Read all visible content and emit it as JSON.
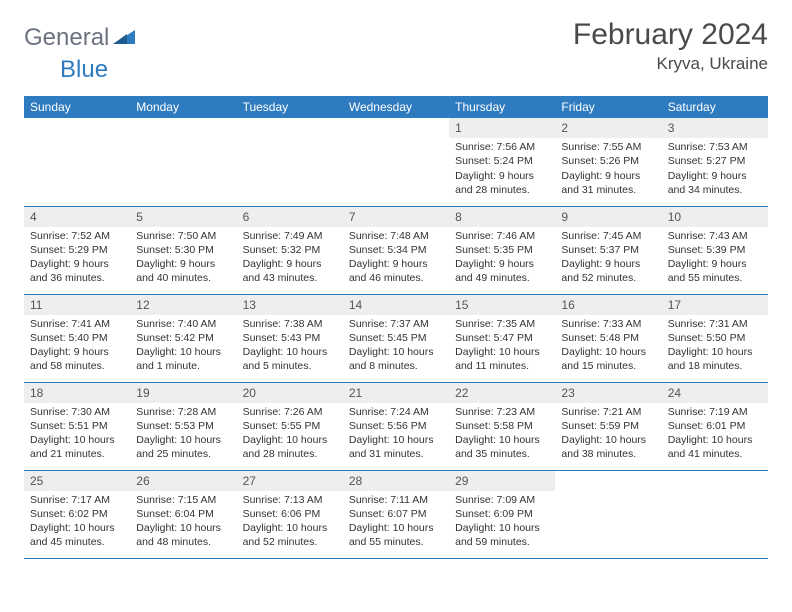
{
  "brand": {
    "name_a": "General",
    "name_b": "Blue"
  },
  "title": "February 2024",
  "location": "Kryva, Ukraine",
  "colors": {
    "header_bg": "#2f7bbf",
    "header_text": "#ffffff",
    "daynum_bg": "#eeeeee",
    "row_border": "#2f7bbf",
    "body_text": "#333333",
    "logo_gray": "#6b7280",
    "logo_blue": "#2f7bbf",
    "page_bg": "#ffffff"
  },
  "typography": {
    "title_fontsize": 30,
    "location_fontsize": 17,
    "weekday_fontsize": 12,
    "daynum_fontsize": 12,
    "cell_fontsize": 10.5
  },
  "weekdays": [
    "Sunday",
    "Monday",
    "Tuesday",
    "Wednesday",
    "Thursday",
    "Friday",
    "Saturday"
  ],
  "weeks": [
    [
      {
        "n": "",
        "sr": "",
        "ss": "",
        "dl": ""
      },
      {
        "n": "",
        "sr": "",
        "ss": "",
        "dl": ""
      },
      {
        "n": "",
        "sr": "",
        "ss": "",
        "dl": ""
      },
      {
        "n": "",
        "sr": "",
        "ss": "",
        "dl": ""
      },
      {
        "n": "1",
        "sr": "Sunrise: 7:56 AM",
        "ss": "Sunset: 5:24 PM",
        "dl": "Daylight: 9 hours and 28 minutes."
      },
      {
        "n": "2",
        "sr": "Sunrise: 7:55 AM",
        "ss": "Sunset: 5:26 PM",
        "dl": "Daylight: 9 hours and 31 minutes."
      },
      {
        "n": "3",
        "sr": "Sunrise: 7:53 AM",
        "ss": "Sunset: 5:27 PM",
        "dl": "Daylight: 9 hours and 34 minutes."
      }
    ],
    [
      {
        "n": "4",
        "sr": "Sunrise: 7:52 AM",
        "ss": "Sunset: 5:29 PM",
        "dl": "Daylight: 9 hours and 36 minutes."
      },
      {
        "n": "5",
        "sr": "Sunrise: 7:50 AM",
        "ss": "Sunset: 5:30 PM",
        "dl": "Daylight: 9 hours and 40 minutes."
      },
      {
        "n": "6",
        "sr": "Sunrise: 7:49 AM",
        "ss": "Sunset: 5:32 PM",
        "dl": "Daylight: 9 hours and 43 minutes."
      },
      {
        "n": "7",
        "sr": "Sunrise: 7:48 AM",
        "ss": "Sunset: 5:34 PM",
        "dl": "Daylight: 9 hours and 46 minutes."
      },
      {
        "n": "8",
        "sr": "Sunrise: 7:46 AM",
        "ss": "Sunset: 5:35 PM",
        "dl": "Daylight: 9 hours and 49 minutes."
      },
      {
        "n": "9",
        "sr": "Sunrise: 7:45 AM",
        "ss": "Sunset: 5:37 PM",
        "dl": "Daylight: 9 hours and 52 minutes."
      },
      {
        "n": "10",
        "sr": "Sunrise: 7:43 AM",
        "ss": "Sunset: 5:39 PM",
        "dl": "Daylight: 9 hours and 55 minutes."
      }
    ],
    [
      {
        "n": "11",
        "sr": "Sunrise: 7:41 AM",
        "ss": "Sunset: 5:40 PM",
        "dl": "Daylight: 9 hours and 58 minutes."
      },
      {
        "n": "12",
        "sr": "Sunrise: 7:40 AM",
        "ss": "Sunset: 5:42 PM",
        "dl": "Daylight: 10 hours and 1 minute."
      },
      {
        "n": "13",
        "sr": "Sunrise: 7:38 AM",
        "ss": "Sunset: 5:43 PM",
        "dl": "Daylight: 10 hours and 5 minutes."
      },
      {
        "n": "14",
        "sr": "Sunrise: 7:37 AM",
        "ss": "Sunset: 5:45 PM",
        "dl": "Daylight: 10 hours and 8 minutes."
      },
      {
        "n": "15",
        "sr": "Sunrise: 7:35 AM",
        "ss": "Sunset: 5:47 PM",
        "dl": "Daylight: 10 hours and 11 minutes."
      },
      {
        "n": "16",
        "sr": "Sunrise: 7:33 AM",
        "ss": "Sunset: 5:48 PM",
        "dl": "Daylight: 10 hours and 15 minutes."
      },
      {
        "n": "17",
        "sr": "Sunrise: 7:31 AM",
        "ss": "Sunset: 5:50 PM",
        "dl": "Daylight: 10 hours and 18 minutes."
      }
    ],
    [
      {
        "n": "18",
        "sr": "Sunrise: 7:30 AM",
        "ss": "Sunset: 5:51 PM",
        "dl": "Daylight: 10 hours and 21 minutes."
      },
      {
        "n": "19",
        "sr": "Sunrise: 7:28 AM",
        "ss": "Sunset: 5:53 PM",
        "dl": "Daylight: 10 hours and 25 minutes."
      },
      {
        "n": "20",
        "sr": "Sunrise: 7:26 AM",
        "ss": "Sunset: 5:55 PM",
        "dl": "Daylight: 10 hours and 28 minutes."
      },
      {
        "n": "21",
        "sr": "Sunrise: 7:24 AM",
        "ss": "Sunset: 5:56 PM",
        "dl": "Daylight: 10 hours and 31 minutes."
      },
      {
        "n": "22",
        "sr": "Sunrise: 7:23 AM",
        "ss": "Sunset: 5:58 PM",
        "dl": "Daylight: 10 hours and 35 minutes."
      },
      {
        "n": "23",
        "sr": "Sunrise: 7:21 AM",
        "ss": "Sunset: 5:59 PM",
        "dl": "Daylight: 10 hours and 38 minutes."
      },
      {
        "n": "24",
        "sr": "Sunrise: 7:19 AM",
        "ss": "Sunset: 6:01 PM",
        "dl": "Daylight: 10 hours and 41 minutes."
      }
    ],
    [
      {
        "n": "25",
        "sr": "Sunrise: 7:17 AM",
        "ss": "Sunset: 6:02 PM",
        "dl": "Daylight: 10 hours and 45 minutes."
      },
      {
        "n": "26",
        "sr": "Sunrise: 7:15 AM",
        "ss": "Sunset: 6:04 PM",
        "dl": "Daylight: 10 hours and 48 minutes."
      },
      {
        "n": "27",
        "sr": "Sunrise: 7:13 AM",
        "ss": "Sunset: 6:06 PM",
        "dl": "Daylight: 10 hours and 52 minutes."
      },
      {
        "n": "28",
        "sr": "Sunrise: 7:11 AM",
        "ss": "Sunset: 6:07 PM",
        "dl": "Daylight: 10 hours and 55 minutes."
      },
      {
        "n": "29",
        "sr": "Sunrise: 7:09 AM",
        "ss": "Sunset: 6:09 PM",
        "dl": "Daylight: 10 hours and 59 minutes."
      },
      {
        "n": "",
        "sr": "",
        "ss": "",
        "dl": ""
      },
      {
        "n": "",
        "sr": "",
        "ss": "",
        "dl": ""
      }
    ]
  ]
}
